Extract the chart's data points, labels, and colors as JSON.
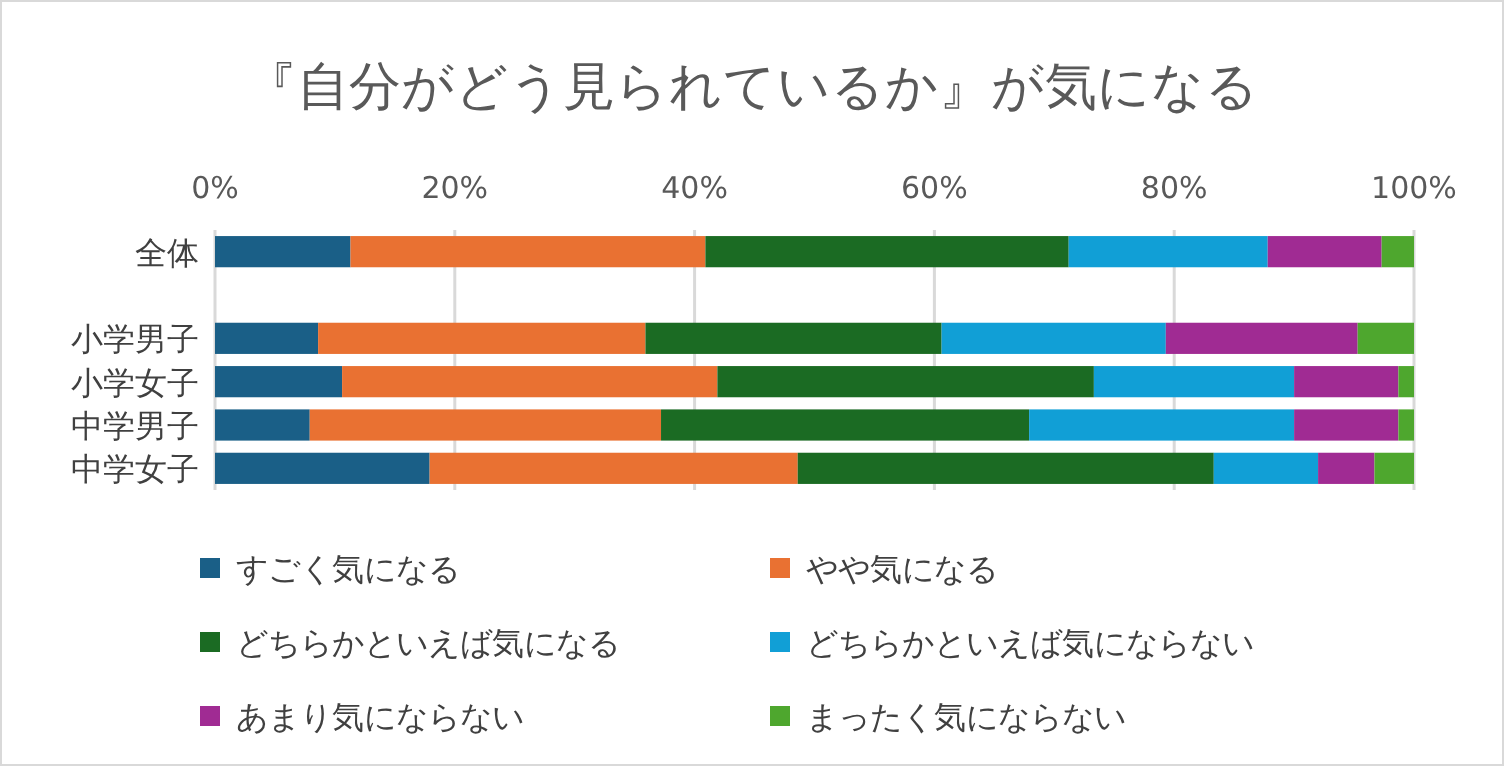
{
  "chart_data": {
    "type": "bar",
    "orientation": "horizontal",
    "stacked": true,
    "title": "『自分がどう見られているか』が気になる",
    "categories": [
      "全体",
      null,
      "小学男子",
      "小学女子",
      "中学男子",
      "中学女子"
    ],
    "series": [
      {
        "name": "すごく気になる",
        "color": "#1a5f87",
        "values": [
          11.3,
          null,
          8.6,
          10.6,
          7.9,
          17.9
        ]
      },
      {
        "name": "やや気になる",
        "color": "#e97132",
        "values": [
          29.6,
          null,
          27.3,
          31.3,
          29.3,
          30.7
        ]
      },
      {
        "name": "どちらかといえば気になる",
        "color": "#1b6b23",
        "values": [
          30.3,
          null,
          24.7,
          31.4,
          30.7,
          34.7
        ]
      },
      {
        "name": "どちらかといえば気にならない",
        "color": "#119fd6",
        "values": [
          16.6,
          null,
          18.7,
          16.7,
          22.1,
          8.7
        ]
      },
      {
        "name": "あまり気にならない",
        "color": "#a02b93",
        "values": [
          9.5,
          null,
          16.0,
          8.7,
          8.7,
          4.7
        ]
      },
      {
        "name": "まったく気にならない",
        "color": "#4ea72e",
        "values": [
          2.7,
          null,
          4.7,
          1.3,
          1.3,
          3.3
        ]
      }
    ],
    "xlim": [
      0,
      100
    ],
    "xticks": [
      {
        "value": 0,
        "label": "0%"
      },
      {
        "value": 20,
        "label": "20%"
      },
      {
        "value": 40,
        "label": "40%"
      },
      {
        "value": 60,
        "label": "60%"
      },
      {
        "value": 80,
        "label": "80%"
      },
      {
        "value": 100,
        "label": "100%"
      }
    ],
    "grid": "x",
    "legend": "bottom"
  }
}
